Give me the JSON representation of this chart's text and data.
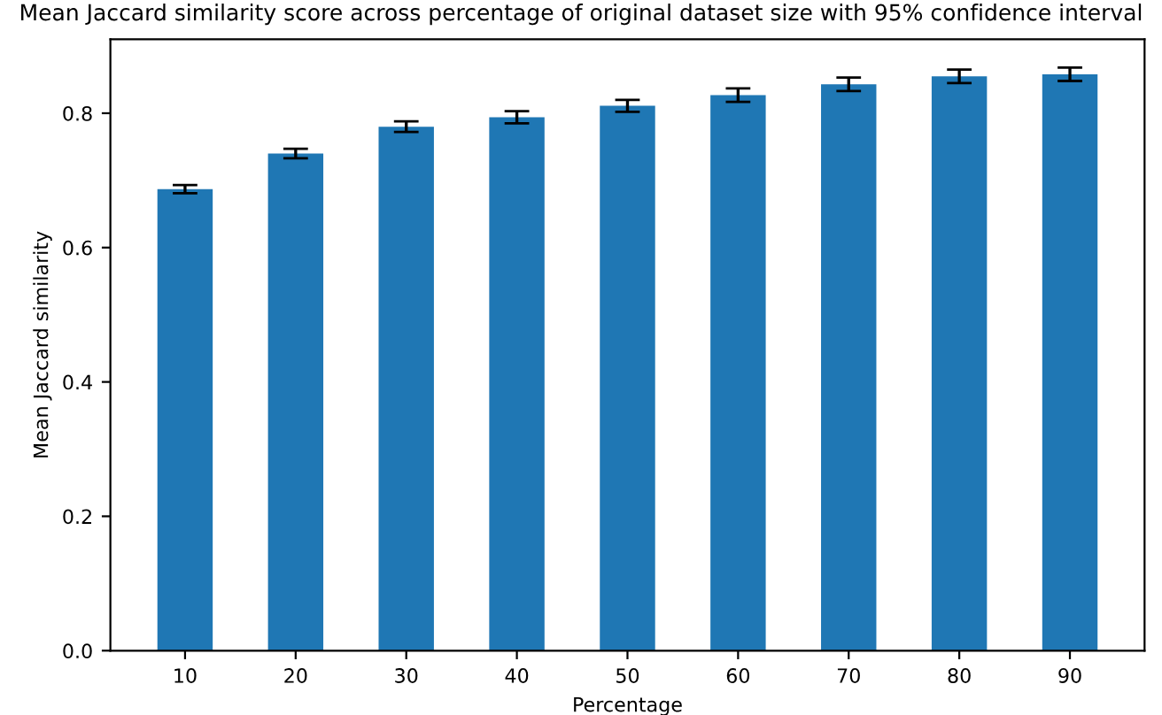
{
  "chart_data": {
    "type": "bar",
    "title": "Mean Jaccard similarity score across percentage of original dataset size with 95% confidence interval",
    "xlabel": "Percentage",
    "ylabel": "Mean Jaccard similarity",
    "categories": [
      "10",
      "20",
      "30",
      "40",
      "50",
      "60",
      "70",
      "80",
      "90"
    ],
    "values": [
      0.687,
      0.74,
      0.78,
      0.794,
      0.811,
      0.827,
      0.843,
      0.855,
      0.858
    ],
    "errors": [
      0.006,
      0.007,
      0.008,
      0.009,
      0.009,
      0.01,
      0.01,
      0.01,
      0.01
    ],
    "color": "#1f77b4",
    "ylim": [
      0,
      0.91
    ],
    "yticks": [
      {
        "value": 0,
        "label": "0.0"
      },
      0.2,
      0.4,
      0.6,
      0.8
    ],
    "grid": false
  }
}
